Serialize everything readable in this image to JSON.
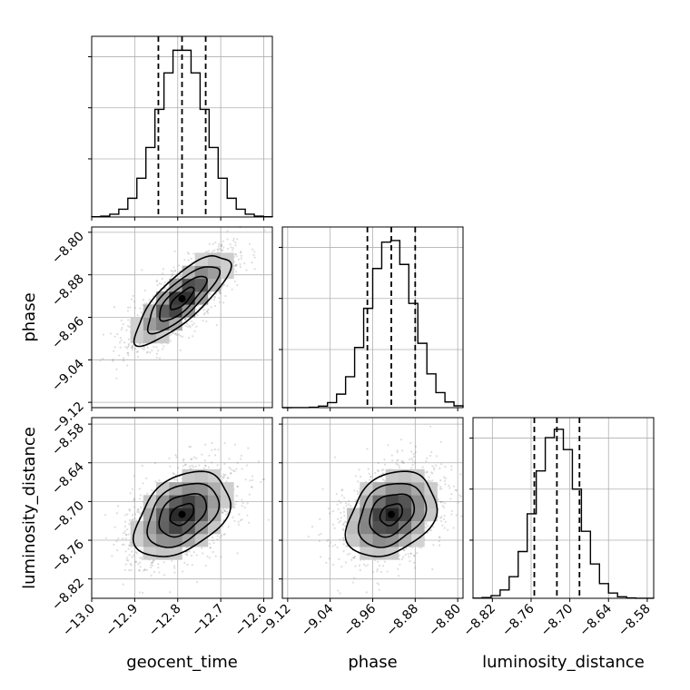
{
  "chart_data": {
    "type": "corner",
    "parameters": [
      "geocent_time",
      "phase",
      "luminosity_distance"
    ],
    "axes": {
      "geocent_time": {
        "range": [
          -13.0,
          -12.58
        ],
        "ticks": [
          "−13.0",
          "−12.9",
          "−12.8",
          "−12.7",
          "−12.6"
        ],
        "tick_values": [
          -13.0,
          -12.9,
          -12.8,
          -12.7,
          -12.6
        ]
      },
      "phase": {
        "range": [
          -9.13,
          -8.79
        ],
        "ticks": [
          "−9.12",
          "−9.04",
          "−8.96",
          "−8.88",
          "−8.80"
        ],
        "tick_values": [
          -9.12,
          -9.04,
          -8.96,
          -8.88,
          -8.8
        ]
      },
      "luminosity_distance": {
        "range": [
          -8.85,
          -8.57
        ],
        "ticks": [
          "−8.82",
          "−8.76",
          "−8.70",
          "−8.64",
          "−8.58"
        ],
        "tick_values": [
          -8.82,
          -8.76,
          -8.7,
          -8.64,
          -8.58
        ]
      }
    },
    "marginals": {
      "geocent_time": {
        "mean": -12.79,
        "sd": 0.055,
        "quantiles": [
          -12.845,
          -12.79,
          -12.735
        ]
      },
      "phase": {
        "mean": -8.925,
        "sd": 0.042,
        "quantiles": [
          -8.97,
          -8.925,
          -8.88
        ]
      },
      "luminosity_distance": {
        "mean": -8.72,
        "sd": 0.033,
        "quantiles": [
          -8.755,
          -8.72,
          -8.685
        ]
      }
    },
    "pairs": [
      {
        "x": "geocent_time",
        "y": "phase",
        "correlation": 0.8
      },
      {
        "x": "geocent_time",
        "y": "luminosity_distance",
        "correlation": 0.4
      },
      {
        "x": "phase",
        "y": "luminosity_distance",
        "correlation": 0.3
      }
    ],
    "grid": true
  }
}
